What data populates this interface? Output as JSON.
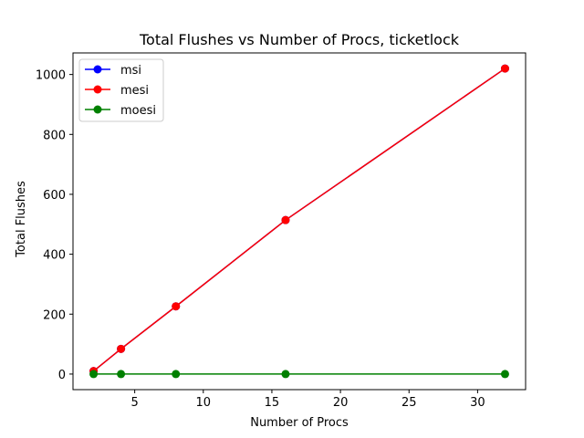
{
  "chart_data": {
    "type": "line",
    "title": "Total Flushes vs Number of Procs, ticketlock",
    "xlabel": "Number of Procs",
    "ylabel": "Total Flushes",
    "xlim": [
      0.5,
      33.5
    ],
    "ylim": [
      -52,
      1072
    ],
    "xticks": [
      5,
      10,
      15,
      20,
      25,
      30
    ],
    "yticks": [
      0,
      200,
      400,
      600,
      800,
      1000
    ],
    "grid": false,
    "legend_position": "upper-left",
    "x": [
      2,
      4,
      8,
      16,
      32
    ],
    "series": [
      {
        "name": "msi",
        "color": "#0000ff",
        "values": [
          10,
          84,
          226,
          514,
          1020
        ]
      },
      {
        "name": "mesi",
        "color": "#ff0000",
        "values": [
          10,
          84,
          226,
          514,
          1020
        ]
      },
      {
        "name": "moesi",
        "color": "#008000",
        "values": [
          0,
          0,
          0,
          0,
          0
        ]
      }
    ]
  }
}
